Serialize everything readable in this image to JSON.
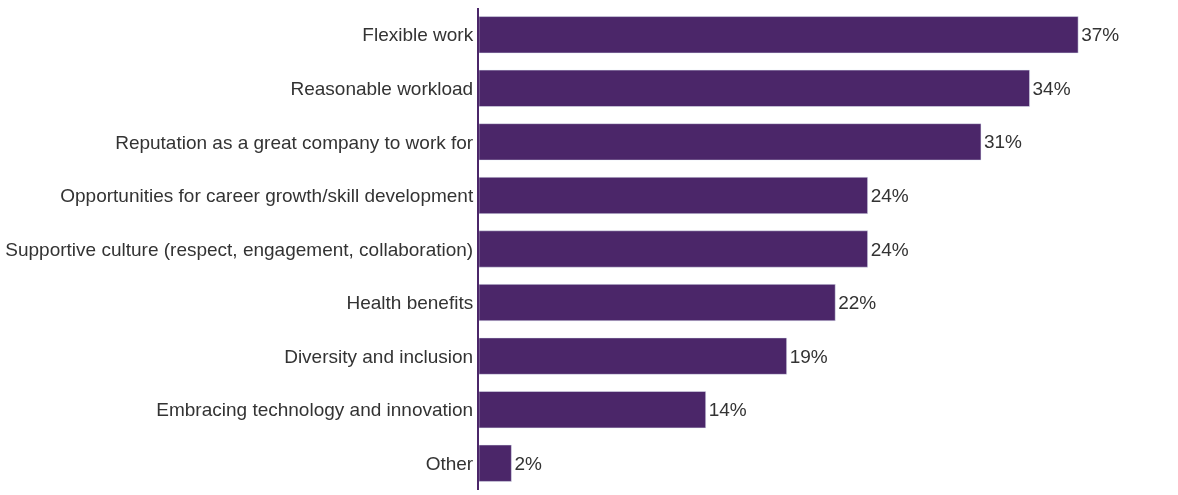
{
  "chart_data": {
    "type": "bar",
    "orientation": "horizontal",
    "categories": [
      "Flexible work",
      "Reasonable workload",
      "Reputation as a great company to work for",
      "Opportunities for career growth/skill development",
      "Supportive culture (respect, engagement, collaboration)",
      "Health benefits",
      "Diversity and inclusion",
      "Embracing technology and innovation",
      "Other"
    ],
    "values": [
      37,
      34,
      31,
      24,
      24,
      22,
      19,
      14,
      2
    ],
    "value_labels": [
      "37%",
      "34%",
      "31%",
      "24%",
      "24%",
      "22%",
      "19%",
      "14%",
      "2%"
    ],
    "color": "#4b2669",
    "legend": false,
    "tick_labels": "y"
  }
}
